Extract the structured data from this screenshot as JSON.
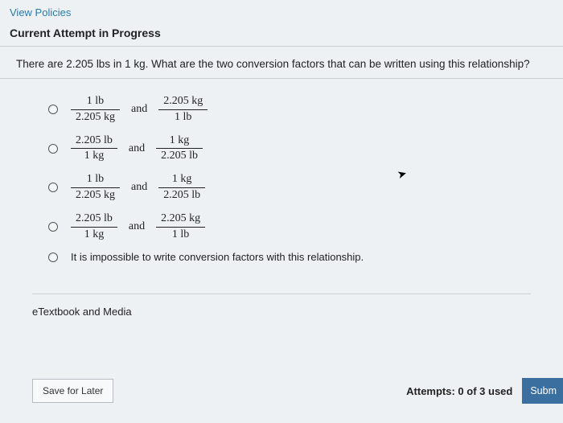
{
  "topLink": "View Policies",
  "attemptHeader": "Current Attempt in Progress",
  "question": "There are 2.205 lbs in 1 kg. What are the two conversion factors that can be written using this relationship?",
  "andWord": "and",
  "options": [
    {
      "type": "frac",
      "f1": {
        "num": "1  lb",
        "den": "2.205  kg"
      },
      "f2": {
        "num": "2.205  kg",
        "den": "1  lb"
      }
    },
    {
      "type": "frac",
      "f1": {
        "num": "2.205  lb",
        "den": "1  kg"
      },
      "f2": {
        "num": "1  kg",
        "den": "2.205  lb"
      }
    },
    {
      "type": "frac",
      "f1": {
        "num": "1  lb",
        "den": "2.205  kg"
      },
      "f2": {
        "num": "1  kg",
        "den": "2.205  lb"
      }
    },
    {
      "type": "frac",
      "f1": {
        "num": "2.205  lb",
        "den": "1  kg"
      },
      "f2": {
        "num": "2.205  kg",
        "den": "1  lb"
      }
    },
    {
      "type": "text",
      "text": "It is impossible to write conversion factors with this relationship."
    }
  ],
  "etextbook": "eTextbook and Media",
  "saveLabel": "Save for Later",
  "attemptsText": "Attempts: 0 of 3 used",
  "submitLabel": "Subm",
  "colors": {
    "link": "#2a7aa8",
    "bg": "#eef1f4",
    "border": "#c9ced4",
    "submitBg": "#3b6fa0"
  }
}
